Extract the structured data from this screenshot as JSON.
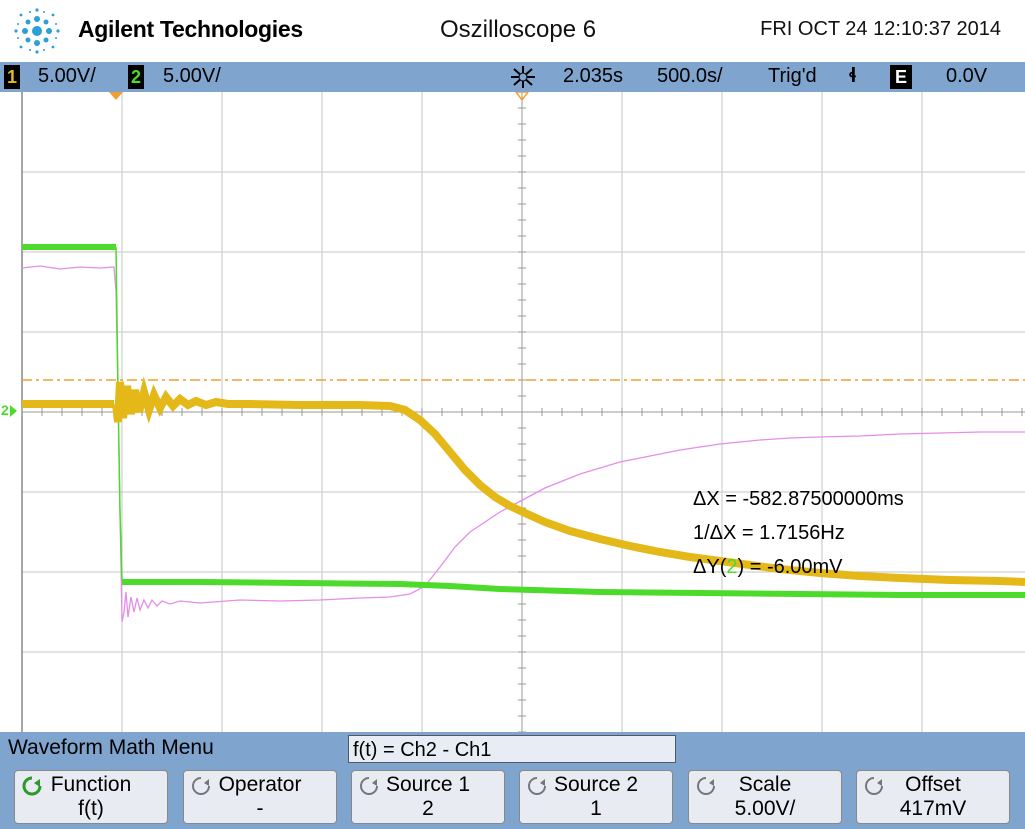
{
  "header": {
    "brand": "Agilent Technologies",
    "title": "Oszilloscope 6",
    "datetime": "FRI OCT 24 12:10:37 2014"
  },
  "status": {
    "ch1_label": "1",
    "ch1_scale": "5.00V/",
    "ch2_label": "2",
    "ch2_scale": "5.00V/",
    "acq_icon": "acquisition-icon",
    "delay": "2.035s",
    "timebase": "500.0s/",
    "trigger": "Trig'd",
    "trigger_slope": "ɬ",
    "trigger_source": "E",
    "trigger_level": "0.0V"
  },
  "measurements": {
    "delta_x": "ΔX = -582.87500000ms",
    "inv_delta_x": "1/ΔX = 1.7156Hz",
    "delta_y_prefix": "ΔY(",
    "delta_y_channel": "2",
    "delta_y_suffix": ") = -6.00mV"
  },
  "ground_marker": "2",
  "menu": {
    "title": "Waveform Math Menu",
    "formula": "f(t) = Ch2 - Ch1",
    "softkeys": [
      {
        "label": "Function",
        "value": "f(t)"
      },
      {
        "label": "Operator",
        "value": "-"
      },
      {
        "label": "Source 1",
        "value": "2"
      },
      {
        "label": "Source 2",
        "value": "1"
      },
      {
        "label": "Scale",
        "value": "5.00V/"
      },
      {
        "label": "Offset",
        "value": "417mV"
      }
    ]
  },
  "colors": {
    "ch1": "#e3b818",
    "ch2": "#4cdb2a",
    "math": "#e48ee8",
    "status_bar": "#7fa4ce",
    "trigger_line": "#f0a030"
  }
}
